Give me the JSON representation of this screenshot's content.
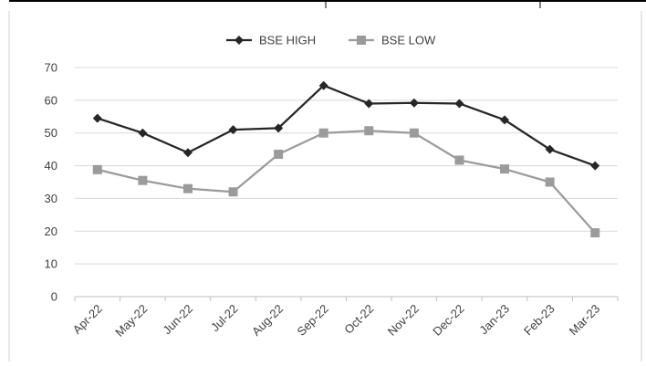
{
  "chart_data": {
    "type": "line",
    "categories": [
      "Apr-22",
      "May-22",
      "Jun-22",
      "Jul-22",
      "Aug-22",
      "Sep-22",
      "Oct-22",
      "Nov-22",
      "Dec-22",
      "Jan-23",
      "Feb-23",
      "Mar-23"
    ],
    "series": [
      {
        "name": "BSE HIGH",
        "marker": "diamond",
        "color": "#262626",
        "values": [
          54.5,
          50,
          44,
          51,
          51.5,
          64.5,
          59,
          59.2,
          59,
          54,
          45,
          40
        ]
      },
      {
        "name": "BSE LOW",
        "marker": "square",
        "color": "#9b9b9b",
        "values": [
          38.8,
          35.5,
          33,
          32,
          43.5,
          50,
          50.7,
          50,
          41.7,
          39,
          35,
          19.5
        ]
      }
    ],
    "ylim": [
      0,
      70
    ],
    "yticks": [
      "0",
      "10",
      "20",
      "30",
      "40",
      "50",
      "60",
      "70"
    ],
    "grid": true,
    "legend_position": "top-center",
    "title": "",
    "xlabel": "",
    "ylabel": ""
  }
}
